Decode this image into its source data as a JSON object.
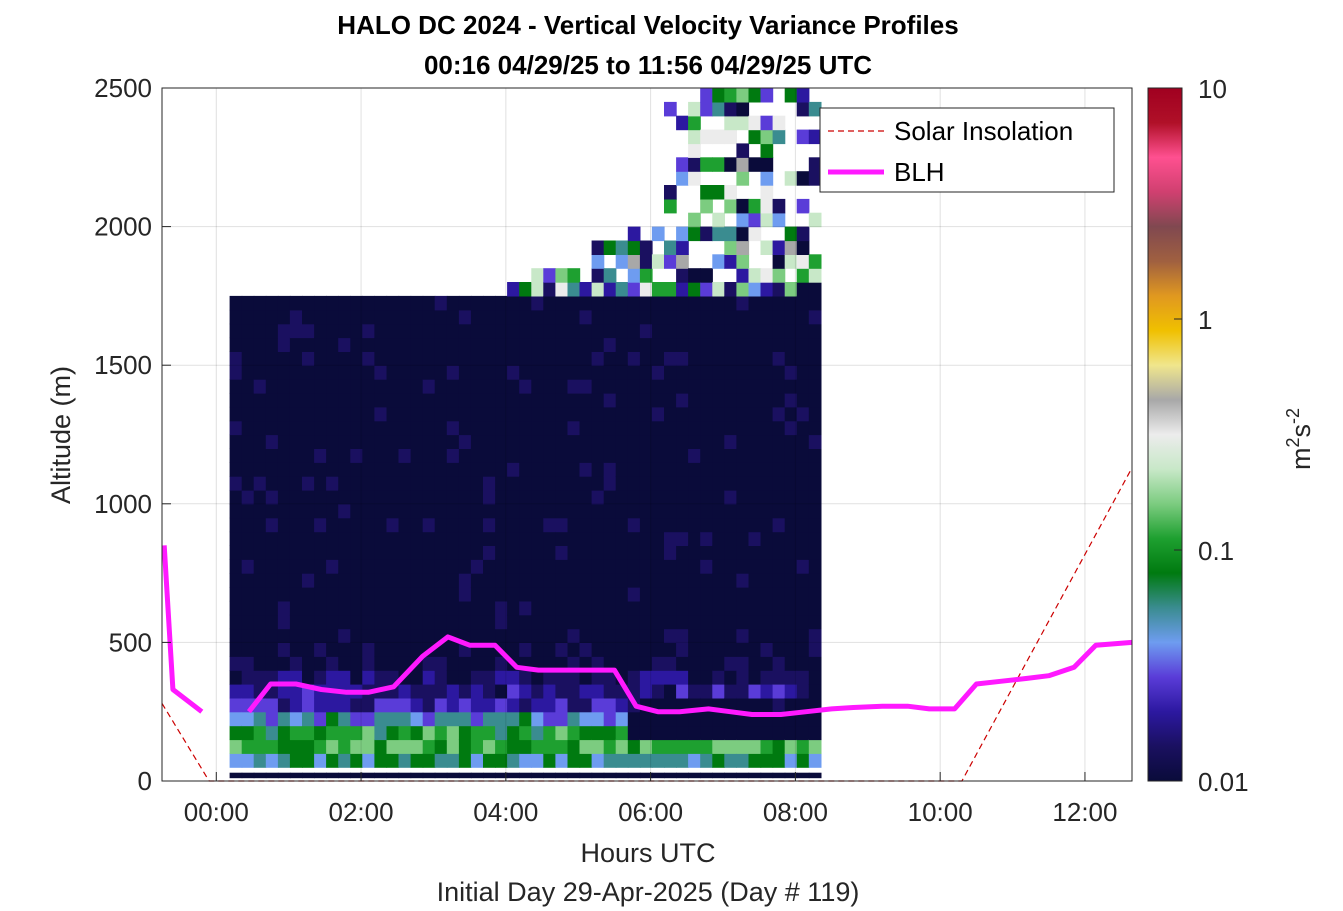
{
  "chart_data": {
    "type": "heatmap",
    "title_line1": "HALO DC 2024 - Vertical Velocity Variance Profiles",
    "title_line2": "00:16 04/29/25 to 11:56 04/29/25  UTC",
    "xlabel": "Hours UTC",
    "xlabel2": "Initial Day 29-Apr-2025 (Day # 119)",
    "ylabel": "Altitude (m)",
    "xlim_hours": [
      -0.75,
      12.65
    ],
    "ylim": [
      0,
      2500
    ],
    "x_ticks": [
      0,
      2,
      4,
      6,
      8,
      10,
      12
    ],
    "x_tick_labels": [
      "00:00",
      "02:00",
      "04:00",
      "06:00",
      "08:00",
      "10:00",
      "12:00"
    ],
    "y_ticks": [
      0,
      500,
      1000,
      1500,
      2000,
      2500
    ],
    "y_tick_labels": [
      "0",
      "500",
      "1000",
      "1500",
      "2000",
      "2500"
    ],
    "grid": true,
    "colorbar": {
      "label_base": "m",
      "label_sup1": "2",
      "label_mid": "s",
      "label_sup2": "-2",
      "scale": "log",
      "range": [
        0.01,
        10
      ],
      "ticks": [
        0.01,
        0.1,
        1,
        10
      ],
      "tick_labels": [
        "0.01",
        "0.1",
        "1",
        "10"
      ],
      "colors": [
        "#0a0b3a",
        "#1a1060",
        "#2c18a0",
        "#5a3cd8",
        "#6e9cf0",
        "#3a8c90",
        "#007a10",
        "#1ea030",
        "#7ccc80",
        "#c8e8c8",
        "#ececec",
        "#a8a8a8",
        "#f0e68c",
        "#f0c000",
        "#e09820",
        "#a06040",
        "#804850",
        "#d04070",
        "#ff5090",
        "#b01028",
        "#a00020"
      ]
    },
    "heatmap": {
      "time_start_hours": 0.267,
      "time_step_hours": 0.1667,
      "altitude_step_m": 50,
      "note_values": "log10 of variance in m2 s-2, estimated",
      "mean_profile_log10": [
        -2.0,
        -1.2,
        -0.9,
        -1.0,
        -1.3,
        -1.6,
        -1.7,
        -1.8,
        -1.9,
        -1.95,
        -2.0,
        -2.0,
        -2.0,
        -2.0,
        -2.0,
        -2.0,
        -2.0,
        -2.0,
        -2.0,
        -2.0,
        -2.0,
        -2.0,
        -2.0,
        -2.0,
        -2.0,
        -2.0,
        -2.0,
        -2.0,
        -2.0,
        -2.0,
        -2.0,
        -2.0,
        -2.0,
        -2.0,
        -2.0
      ]
    },
    "series": [
      {
        "name": "BLH",
        "color": "#ff19ff",
        "x": [
          -0.72,
          -0.6,
          -0.2,
          0.1,
          0.45,
          0.75,
          1.1,
          1.45,
          1.8,
          2.1,
          2.45,
          2.85,
          3.2,
          3.5,
          3.85,
          4.15,
          4.45,
          4.8,
          5.15,
          5.5,
          5.8,
          6.1,
          6.4,
          6.8,
          7.1,
          7.4,
          7.8,
          8.15,
          8.5,
          8.8,
          9.2,
          9.55,
          9.85,
          10.2,
          10.5,
          10.85,
          11.2,
          11.5,
          11.85,
          12.15,
          12.65
        ],
        "y": [
          850,
          330,
          250,
          null,
          250,
          350,
          350,
          330,
          320,
          320,
          340,
          450,
          520,
          490,
          490,
          410,
          400,
          400,
          400,
          400,
          270,
          250,
          250,
          260,
          250,
          240,
          240,
          250,
          260,
          265,
          270,
          270,
          260,
          260,
          350,
          360,
          370,
          380,
          410,
          490,
          500
        ]
      },
      {
        "name": "Solar Insolation",
        "color": "#cc0000",
        "style": "dashed",
        "x": [
          -0.75,
          -0.1,
          10.3,
          12.65
        ],
        "y": [
          280,
          0,
          0,
          1130
        ]
      }
    ],
    "legend_placement": "top-right"
  }
}
